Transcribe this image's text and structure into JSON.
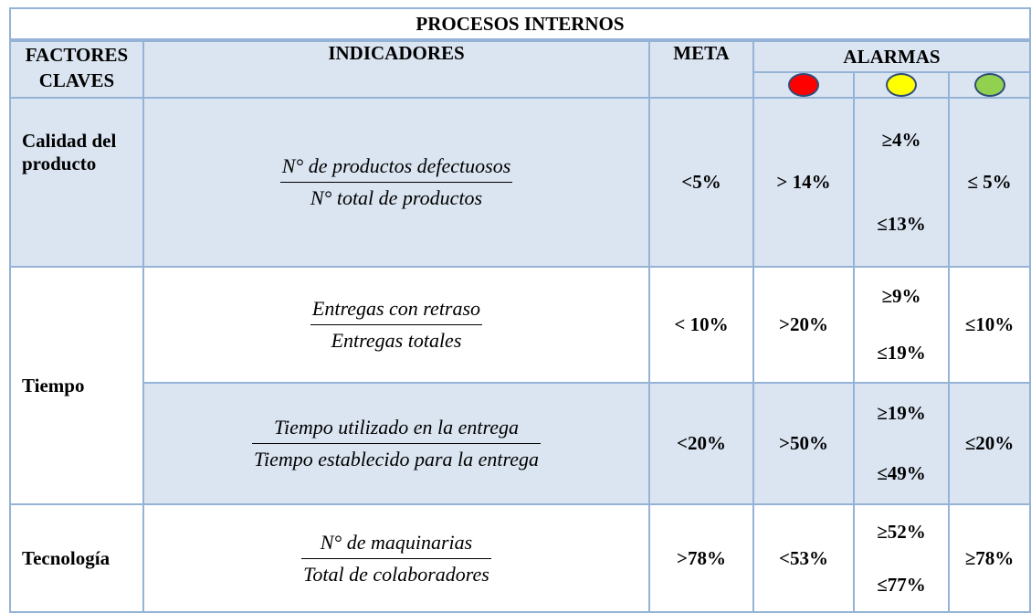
{
  "title": "PROCESOS INTERNOS",
  "headers": {
    "factor": "FACTORES CLAVES",
    "indicator": "INDICADORES",
    "goal": "META",
    "alarms": "ALARMAS"
  },
  "factors": [
    {
      "name": "Calidad del producto",
      "indicators": [
        {
          "numerator": "N° de productos defectuosos",
          "denominator": "N° total de productos",
          "goal": "<5%",
          "red": "> 14%",
          "yellow": [
            "≥4%",
            "≤13%"
          ],
          "green": "≤ 5%"
        }
      ]
    },
    {
      "name": "Tiempo",
      "indicators": [
        {
          "numerator": "Entregas con retraso",
          "denominator": "Entregas totales",
          "goal": "< 10%",
          "red": ">20%",
          "yellow": [
            "≥9%",
            "≤19%"
          ],
          "green": "≤10%"
        },
        {
          "numerator": "Tiempo utilizado en la entrega",
          "denominator": "Tiempo establecido para la entrega",
          "goal": "<20%",
          "red": ">50%",
          "yellow": [
            "≥19%",
            "≤49%"
          ],
          "green": "≤20%"
        }
      ]
    },
    {
      "name": "Tecnología",
      "indicators": [
        {
          "numerator": "N° de maquinarias",
          "denominator": "Total de colaboradores",
          "goal": ">78%",
          "red": "<53%",
          "yellow": [
            "≥52%",
            "≤77%"
          ],
          "green": "≥78%"
        }
      ]
    }
  ]
}
